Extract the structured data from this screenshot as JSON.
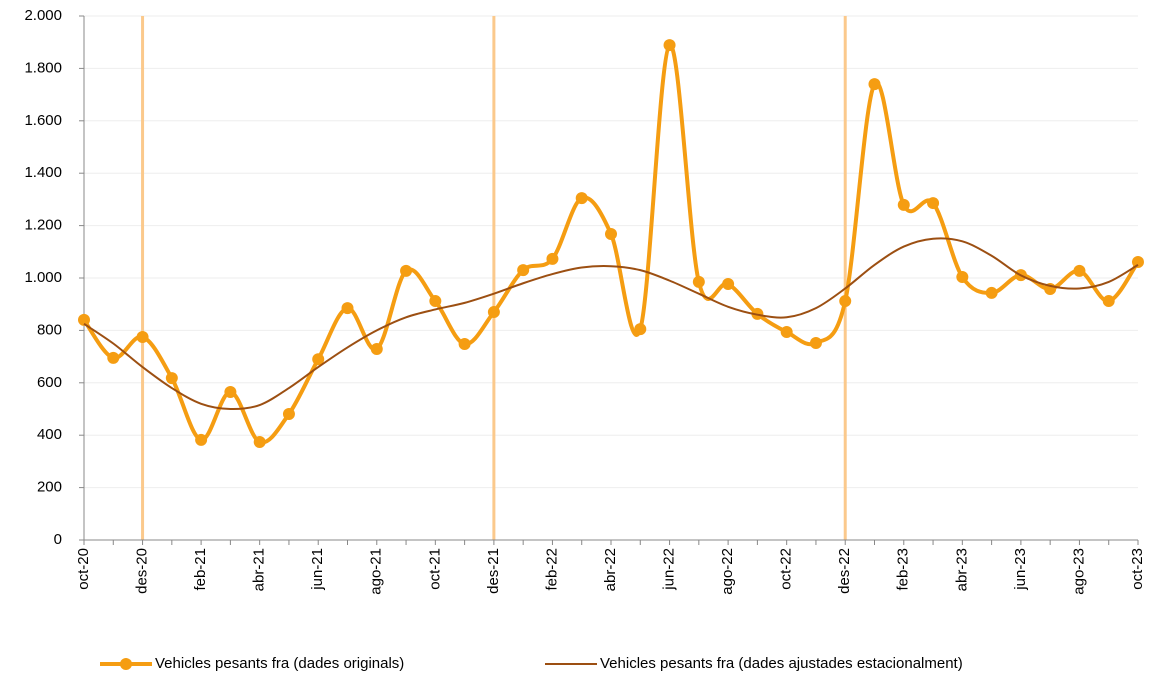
{
  "chart_data": {
    "type": "line",
    "categories": [
      "oct-20",
      null,
      "des-20",
      null,
      "feb-21",
      null,
      "abr-21",
      null,
      "jun-21",
      null,
      "ago-21",
      null,
      "oct-21",
      null,
      "des-21",
      null,
      "feb-22",
      null,
      "abr-22",
      null,
      "jun-22",
      null,
      "ago-22",
      null,
      "oct-22",
      null,
      "des-22",
      null,
      "feb-23",
      null,
      "abr-23",
      null,
      "jun-23",
      null,
      "ago-23",
      null,
      "oct-23"
    ],
    "series": [
      {
        "name": "Vehicles pesants fra (dades originals)",
        "color": "#f59d12",
        "markers": true,
        "values": [
          840,
          695,
          775,
          618,
          382,
          565,
          374,
          481,
          690,
          885,
          729,
          1027,
          912,
          748,
          870,
          1030,
          1073,
          1305,
          1168,
          805,
          1889,
          985,
          977,
          863,
          794,
          752,
          912,
          1740,
          1279,
          1286,
          1004,
          943,
          1011,
          958,
          1027,
          912,
          1061
        ]
      },
      {
        "name": "Vehicles pesants fra (dades ajustades estacionalment)",
        "color": "#9c4f12",
        "markers": false,
        "values": [
          825,
          750,
          660,
          580,
          520,
          500,
          515,
          580,
          660,
          735,
          800,
          850,
          880,
          905,
          940,
          980,
          1015,
          1040,
          1045,
          1030,
          990,
          940,
          890,
          860,
          850,
          885,
          960,
          1050,
          1120,
          1150,
          1140,
          1085,
          1010,
          970,
          960,
          985,
          1050
        ]
      }
    ],
    "highlight_categories": [
      "des-20",
      "des-21",
      "des-22"
    ],
    "highlight_color": "#fbc98c",
    "ylim": [
      0,
      2000
    ],
    "yticks": [
      0,
      200,
      400,
      600,
      800,
      {
        "value": 1000,
        "label": "1.000"
      },
      {
        "value": 1200,
        "label": "1.200"
      },
      {
        "value": 1400,
        "label": "1.400"
      },
      {
        "value": 1600,
        "label": "1.600"
      },
      {
        "value": 1800,
        "label": "1.800"
      },
      {
        "value": 2000,
        "label": "2.000"
      }
    ],
    "grid": true,
    "legend": "bottom"
  }
}
